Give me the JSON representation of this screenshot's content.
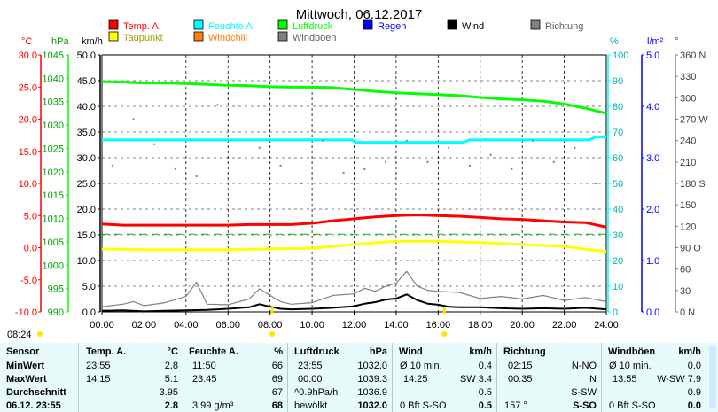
{
  "chart_data": {
    "type": "line",
    "title": "Mittwoch, 06.12.2017",
    "legend": {
      "placement": "top",
      "items": [
        {
          "name": "Temp. A.",
          "color": "#ff0000"
        },
        {
          "name": "Taupunkt",
          "color": "#ffff00"
        },
        {
          "name": "Feuchte A.",
          "color": "#00ffff"
        },
        {
          "name": "Windchill",
          "color": "#ff8000"
        },
        {
          "name": "Luftdruck",
          "color": "#00ff00"
        },
        {
          "name": "Windböen",
          "color": "#808080"
        },
        {
          "name": "Regen",
          "color": "#0000ff"
        },
        {
          "name": "Wind",
          "color": "#000000"
        },
        {
          "name": "Richtung",
          "color": "#808080"
        }
      ]
    },
    "x": {
      "ticks": [
        "00:00",
        "02:00",
        "04:00",
        "06:00",
        "08:00",
        "10:00",
        "12:00",
        "14:00",
        "16:00",
        "18:00",
        "20:00",
        "22:00",
        "24:00"
      ],
      "range_hours": [
        0,
        24
      ]
    },
    "axes": [
      {
        "id": "temp",
        "unit": "°C",
        "color": "#ff0000",
        "range": [
          -10,
          30
        ],
        "ticks": [
          "30.0",
          "25.0",
          "20.0",
          "15.0",
          "10.0",
          "5.0",
          "0.0",
          "-5.0",
          "-10.0"
        ]
      },
      {
        "id": "press",
        "unit": "hPa",
        "color": "#00a000",
        "range": [
          990,
          1045
        ],
        "ticks": [
          "1045",
          "1040",
          "1035",
          "1030",
          "1025",
          "1020",
          "1015",
          "1010",
          "1005",
          "1000",
          "995",
          "990"
        ]
      },
      {
        "id": "wind",
        "unit": "km/h",
        "color": "#000000",
        "range": [
          0,
          50
        ],
        "ticks": [
          "50.0",
          "45.0",
          "40.0",
          "35.0",
          "30.0",
          "25.0",
          "20.0",
          "15.0",
          "10.0",
          "5.0",
          "0.0"
        ]
      },
      {
        "id": "hum",
        "unit": "%",
        "color": "#00c0c0",
        "range": [
          0,
          100
        ],
        "ticks": [
          "100",
          "90",
          "80",
          "70",
          "60",
          "50",
          "40",
          "30",
          "20",
          "10",
          "0"
        ]
      },
      {
        "id": "rain",
        "unit": "l/m²",
        "color": "#0000ff",
        "range": [
          0,
          5
        ],
        "ticks": [
          "5.0",
          "4.0",
          "3.0",
          "2.0",
          "1.0",
          "0.0"
        ]
      },
      {
        "id": "dir",
        "unit": "°",
        "color": "#808080",
        "range": [
          0,
          360
        ],
        "ticks": [
          "360 N",
          "330",
          "300",
          "270 W",
          "240",
          "210",
          "180 S",
          "150",
          "120",
          "90 O",
          "60",
          "30",
          "0 N"
        ]
      }
    ],
    "series": [
      {
        "name": "Temp. A.",
        "axis": "temp",
        "color": "#ff0000",
        "x": [
          0,
          1,
          2,
          3,
          4,
          5,
          6,
          7,
          8,
          9,
          10,
          11,
          12,
          13,
          14,
          15,
          16,
          17,
          18,
          19,
          20,
          21,
          22,
          23,
          24
        ],
        "y": [
          3.7,
          3.5,
          3.5,
          3.5,
          3.5,
          3.5,
          3.5,
          3.6,
          3.6,
          3.6,
          3.8,
          4.2,
          4.5,
          4.8,
          5.0,
          5.1,
          5.0,
          4.9,
          4.7,
          4.5,
          4.4,
          4.2,
          4.0,
          3.9,
          3.2
        ]
      },
      {
        "name": "Taupunkt",
        "axis": "temp",
        "color": "#ffff00",
        "x": [
          0,
          2,
          4,
          6,
          8,
          10,
          12,
          14,
          16,
          18,
          20,
          22,
          24
        ],
        "y": [
          -0.2,
          -0.3,
          -0.3,
          -0.3,
          -0.2,
          -0.1,
          0.5,
          1.0,
          1.0,
          0.8,
          0.5,
          0.2,
          -0.6
        ]
      },
      {
        "name": "Feuchte A.",
        "axis": "hum",
        "color": "#00ffff",
        "x": [
          0,
          2,
          4,
          6,
          8,
          10,
          11.9,
          12.1,
          14,
          16,
          17.2,
          17.5,
          20,
          22,
          23.2,
          23.5,
          24
        ],
        "y": [
          67,
          67,
          67,
          67,
          67,
          67,
          67,
          66,
          66,
          66,
          66,
          67,
          67,
          67,
          67,
          68,
          68
        ]
      },
      {
        "name": "Luftdruck",
        "axis": "press",
        "color": "#00ff00",
        "x": [
          0,
          1,
          2,
          3,
          4,
          5,
          6,
          7,
          8,
          9,
          10,
          11,
          12,
          13,
          14,
          15,
          16,
          17,
          18,
          19,
          20,
          21,
          22,
          23,
          24
        ],
        "y": [
          1039.3,
          1039.2,
          1039.0,
          1039.0,
          1038.9,
          1038.7,
          1038.5,
          1038.4,
          1038.2,
          1038.1,
          1038.1,
          1038.0,
          1037.6,
          1037.2,
          1036.9,
          1036.7,
          1036.5,
          1036.3,
          1035.9,
          1035.6,
          1035.4,
          1035.1,
          1034.5,
          1033.6,
          1032.5
        ]
      },
      {
        "name": "Windchill",
        "axis": "temp",
        "color": "#ff8000",
        "style": "dashed",
        "x": [
          0,
          24
        ],
        "y": [
          2.1,
          2.1
        ]
      },
      {
        "name": "Wind",
        "axis": "wind",
        "color": "#000000",
        "x": [
          0,
          1,
          2,
          3,
          4,
          5,
          6,
          7,
          7.5,
          8,
          8.5,
          9,
          10,
          11,
          12,
          12.5,
          13,
          13.5,
          14,
          14.5,
          15,
          15.5,
          16,
          16.5,
          17,
          18,
          19,
          20,
          21,
          22,
          23,
          24
        ],
        "y": [
          0.2,
          0.3,
          0.1,
          0.2,
          0.3,
          0.4,
          0.6,
          0.9,
          1.5,
          1.0,
          0.6,
          0.5,
          0.6,
          0.8,
          1.1,
          1.6,
          1.9,
          2.4,
          2.6,
          3.4,
          2.3,
          1.6,
          1.4,
          1.0,
          0.9,
          0.9,
          0.7,
          0.6,
          0.7,
          0.6,
          0.8,
          0.5
        ]
      },
      {
        "name": "Windböen",
        "axis": "wind",
        "color": "#808080",
        "x": [
          0,
          1,
          1.5,
          2,
          3,
          4,
          4.5,
          5,
          6,
          7,
          7.5,
          8,
          8.5,
          9,
          10,
          11,
          12,
          12.5,
          13,
          13.5,
          14,
          14.5,
          15,
          15.5,
          16,
          17,
          18,
          19,
          20,
          21,
          22,
          23,
          24
        ],
        "y": [
          1.0,
          1.5,
          2.0,
          1.2,
          1.8,
          3.0,
          5.8,
          1.5,
          1.4,
          2.5,
          4.5,
          3.2,
          2.0,
          1.5,
          1.8,
          3.2,
          3.5,
          4.6,
          4.0,
          5.0,
          5.6,
          7.9,
          5.0,
          4.2,
          4.0,
          3.8,
          2.6,
          3.0,
          2.5,
          3.2,
          2.2,
          2.8,
          2.0
        ]
      },
      {
        "name": "Richtung",
        "axis": "dir",
        "style": "points",
        "color": "#808080",
        "x": [
          0.5,
          1.5,
          2.5,
          3.5,
          4.5,
          5.5,
          6.5,
          7.5,
          8.5,
          9.5,
          10.5,
          11.5,
          12.5,
          13.5,
          14.5,
          15.5,
          16.5,
          17.5,
          18.5,
          19.5,
          20.5,
          21.5,
          22.5,
          23.5
        ],
        "y": [
          205,
          270,
          235,
          200,
          190,
          290,
          215,
          230,
          205,
          180,
          240,
          195,
          200,
          210,
          240,
          210,
          230,
          205,
          220,
          200,
          240,
          210,
          230,
          180
        ]
      }
    ],
    "markers": [
      {
        "name": "sunrise",
        "x_hours": 8.1,
        "color": "#ffe400"
      },
      {
        "name": "sunset",
        "x_hours": 16.3,
        "color": "#ffe400"
      }
    ],
    "grid": true
  },
  "time_marker": "08:24",
  "stats": {
    "sensor": {
      "header": "Sensor",
      "rows": [
        "MinWert",
        "MaxWert",
        "Durchschnitt",
        "06.12. 23:55"
      ]
    },
    "temp": {
      "header": "Temp. A.",
      "unit": "°C",
      "rows": [
        [
          "23:55",
          "2.8"
        ],
        [
          "14:15",
          "5.1"
        ],
        [
          "",
          "3.95"
        ],
        [
          "",
          "2.8"
        ]
      ]
    },
    "hum": {
      "header": "Feuchte A.",
      "unit": "%",
      "rows": [
        [
          "11:50",
          "66"
        ],
        [
          "23:45",
          "69"
        ],
        [
          "",
          "67"
        ],
        [
          "3.99 g/m³",
          "68"
        ]
      ]
    },
    "press": {
      "header": "Luftdruck",
      "unit": "hPa",
      "rows": [
        [
          "23:55",
          "1032.0"
        ],
        [
          "00:00",
          "1039.3"
        ],
        [
          "^0.9hPa/h",
          "1036.9"
        ],
        [
          "bewölkt",
          "↓1032.0"
        ]
      ]
    },
    "wind": {
      "header": "Wind",
      "unit": "km/h",
      "rows": [
        [
          "Ø 10 min.",
          "",
          "0.4"
        ],
        [
          "14:25",
          "SW 3.4",
          ""
        ],
        [
          "",
          "",
          "0.5"
        ],
        [
          "0 Bft S-SO",
          "",
          "0.5"
        ]
      ]
    },
    "dir": {
      "header": "Richtung",
      "unit": "",
      "rows": [
        [
          "02:15",
          "N-NO"
        ],
        [
          "00:35",
          "N"
        ],
        [
          "",
          "S-SW"
        ],
        [
          "157 °",
          "S-SO"
        ]
      ]
    },
    "gust": {
      "header": "Windböen",
      "unit": "km/h",
      "rows": [
        [
          "Ø 10 min.",
          "",
          "0.0"
        ],
        [
          "13:55",
          "W-SW 7.9",
          ""
        ],
        [
          "",
          "",
          "0.9"
        ],
        [
          "0 Bft S-SO",
          "",
          "0.0"
        ]
      ]
    }
  }
}
